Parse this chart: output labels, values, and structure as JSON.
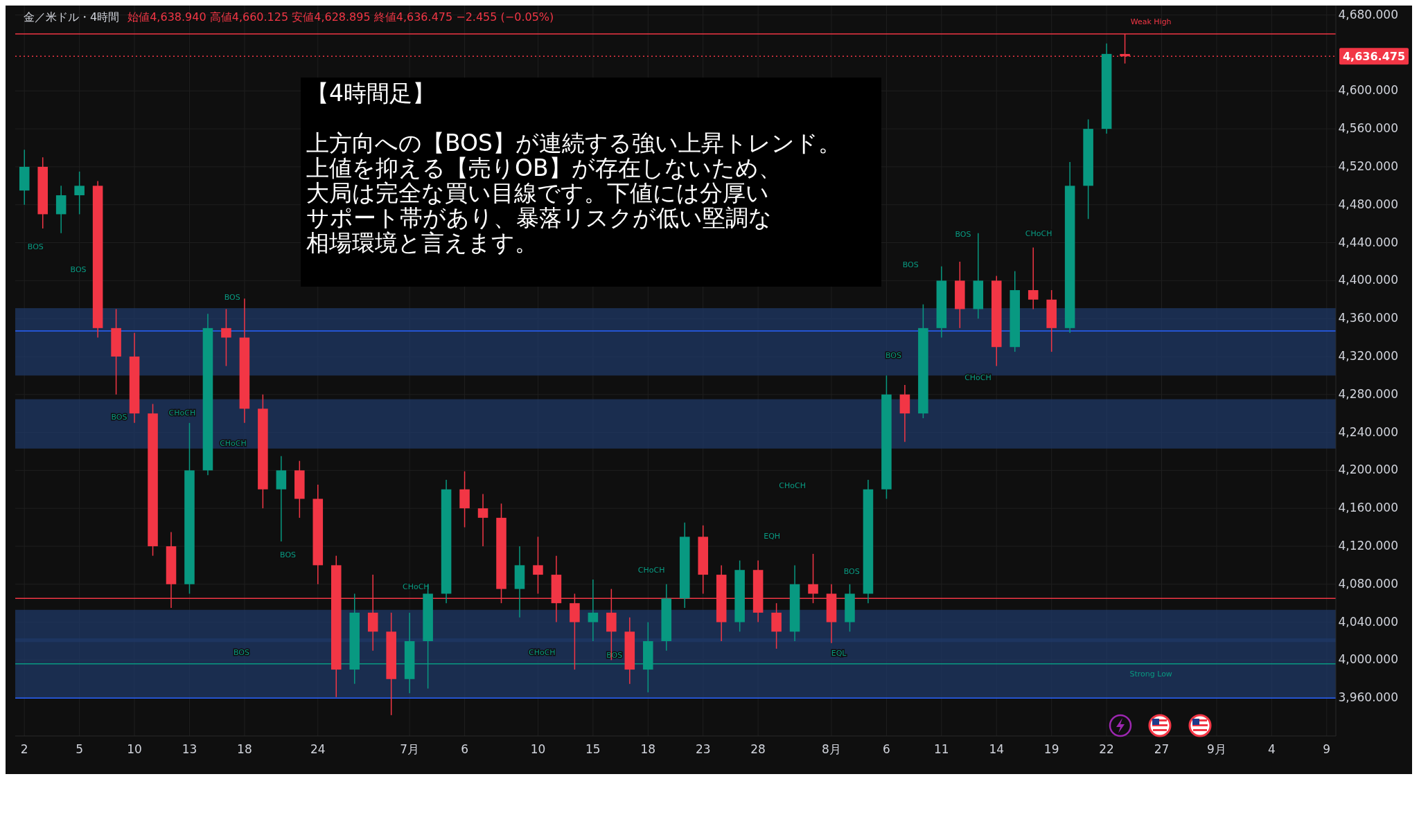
{
  "chart_data": {
    "type": "candlestick",
    "title": "金／米ドル・4時間",
    "subtitle": "始値4,638.940 高値4,660.125 安値4,628.895 終値4,636.475 −2.455 (−0.05%)",
    "categories": [
      "2",
      null,
      null,
      "5",
      null,
      null,
      "10",
      null,
      null,
      "13",
      null,
      null,
      "18",
      null,
      null,
      null,
      "24",
      null,
      null,
      null,
      null,
      "7月",
      null,
      null,
      "6",
      null,
      null,
      null,
      "10",
      null,
      null,
      "15",
      null,
      null,
      "18",
      null,
      null,
      "23",
      null,
      null,
      "28",
      null,
      null,
      null,
      "8月",
      null,
      null,
      "6",
      null,
      null,
      "11",
      null,
      null,
      "14",
      null,
      null,
      "19",
      null,
      null,
      "22",
      null,
      null,
      "27",
      null,
      null,
      "9月",
      null,
      null,
      "4",
      null,
      null,
      "9"
    ],
    "ohlc": [
      [
        4495,
        4538,
        4480,
        4520
      ],
      [
        4520,
        4530,
        4455,
        4470
      ],
      [
        4470,
        4500,
        4450,
        4490
      ],
      [
        4490,
        4515,
        4470,
        4500
      ],
      [
        4500,
        4505,
        4340,
        4350
      ],
      [
        4350,
        4370,
        4280,
        4320
      ],
      [
        4320,
        4345,
        4250,
        4260
      ],
      [
        4260,
        4270,
        4110,
        4120
      ],
      [
        4120,
        4135,
        4055,
        4080
      ],
      [
        4080,
        4250,
        4070,
        4200
      ],
      [
        4200,
        4365,
        4195,
        4350
      ],
      [
        4350,
        4370,
        4310,
        4340
      ],
      [
        4340,
        4381,
        4250,
        4265
      ],
      [
        4265,
        4280,
        4160,
        4180
      ],
      [
        4180,
        4215,
        4125,
        4200
      ],
      [
        4200,
        4210,
        4150,
        4170
      ],
      [
        4170,
        4185,
        4080,
        4100
      ],
      [
        4100,
        4110,
        3961,
        3990
      ],
      [
        3990,
        4070,
        3975,
        4050
      ],
      [
        4050,
        4090,
        4010,
        4030
      ],
      [
        4030,
        4050,
        3942,
        3980
      ],
      [
        3980,
        4050,
        3965,
        4020
      ],
      [
        4020,
        4080,
        3970,
        4070
      ],
      [
        4070,
        4190,
        4060,
        4180
      ],
      [
        4180,
        4199,
        4140,
        4160
      ],
      [
        4160,
        4175,
        4120,
        4150
      ],
      [
        4150,
        4165,
        4060,
        4075
      ],
      [
        4075,
        4120,
        4045,
        4100
      ],
      [
        4100,
        4130,
        4070,
        4090
      ],
      [
        4090,
        4110,
        4040,
        4060
      ],
      [
        4060,
        4070,
        3990,
        4040
      ],
      [
        4040,
        4085,
        4020,
        4050
      ],
      [
        4050,
        4075,
        4000,
        4030
      ],
      [
        4030,
        4045,
        3975,
        3990
      ],
      [
        3990,
        4040,
        3966,
        4020
      ],
      [
        4020,
        4080,
        4010,
        4065
      ],
      [
        4065,
        4145,
        4055,
        4130
      ],
      [
        4130,
        4142,
        4070,
        4090
      ],
      [
        4090,
        4100,
        4020,
        4040
      ],
      [
        4040,
        4105,
        4030,
        4095
      ],
      [
        4095,
        4105,
        4040,
        4050
      ],
      [
        4050,
        4060,
        4012,
        4030
      ],
      [
        4030,
        4100,
        4020,
        4080
      ],
      [
        4080,
        4112,
        4060,
        4070
      ],
      [
        4070,
        4080,
        4018,
        4040
      ],
      [
        4040,
        4080,
        4030,
        4070
      ],
      [
        4070,
        4190,
        4060,
        4180
      ],
      [
        4180,
        4300,
        4170,
        4280
      ],
      [
        4280,
        4290,
        4230,
        4260
      ],
      [
        4260,
        4375,
        4255,
        4350
      ],
      [
        4350,
        4415,
        4340,
        4400
      ],
      [
        4400,
        4420,
        4350,
        4370
      ],
      [
        4370,
        4450,
        4360,
        4400
      ],
      [
        4400,
        4405,
        4310,
        4330
      ],
      [
        4330,
        4410,
        4325,
        4390
      ],
      [
        4390,
        4435,
        4370,
        4380
      ],
      [
        4380,
        4390,
        4325,
        4350
      ],
      [
        4350,
        4525,
        4345,
        4500
      ],
      [
        4500,
        4570,
        4465,
        4560
      ],
      [
        4560,
        4650,
        4555,
        4639
      ],
      [
        4638.94,
        4660.125,
        4628.895,
        4636.475
      ],
      null,
      null,
      null,
      null,
      null,
      null,
      null,
      null,
      null,
      null,
      null
    ],
    "ylim": [
      3920,
      4690
    ],
    "yticks": [
      {
        "value": 3960,
        "label": "3,960.000"
      },
      {
        "value": 4000,
        "label": "4,000.000"
      },
      {
        "value": 4040,
        "label": "4,040.000"
      },
      {
        "value": 4080,
        "label": "4,080.000"
      },
      {
        "value": 4120,
        "label": "4,120.000"
      },
      {
        "value": 4160,
        "label": "4,160.000"
      },
      {
        "value": 4200,
        "label": "4,200.000"
      },
      {
        "value": 4240,
        "label": "4,240.000"
      },
      {
        "value": 4280,
        "label": "4,280.000"
      },
      {
        "value": 4320,
        "label": "4,320.000"
      },
      {
        "value": 4360,
        "label": "4,360.000"
      },
      {
        "value": 4400,
        "label": "4,400.000"
      },
      {
        "value": 4440,
        "label": "4,440.000"
      },
      {
        "value": 4480,
        "label": "4,480.000"
      },
      {
        "value": 4520,
        "label": "4,520.000"
      },
      {
        "value": 4560,
        "label": "4,560.000"
      },
      {
        "value": 4600,
        "label": "4,600.000"
      },
      {
        "value": 4680,
        "label": "4,680.000"
      }
    ],
    "grid": true,
    "ref_lines": [
      {
        "axis": "y",
        "value": 4636.475,
        "label": "4,636.475",
        "color": "#f23645",
        "line_style": "dotted"
      },
      {
        "axis": "y",
        "value": 4660,
        "label": "Weak High",
        "color": "#f23645",
        "line_style": "solid"
      },
      {
        "axis": "y",
        "value": 3996,
        "label": "Strong Low",
        "color": "#089981",
        "line_style": "solid"
      },
      {
        "axis": "y",
        "value": 4065,
        "color": "#f23645",
        "line_style": "solid"
      },
      {
        "axis": "y",
        "value": 4347,
        "color": "#2962ff",
        "line_style": "solid"
      },
      {
        "axis": "y",
        "value": 3960,
        "color": "#2962ff",
        "line_style": "solid"
      }
    ],
    "bands": [
      {
        "axis": "y",
        "from": 4300,
        "to": 4371,
        "color": "#1f3866"
      },
      {
        "axis": "y",
        "from": 4223,
        "to": 4275,
        "color": "#1f3866"
      },
      {
        "axis": "y",
        "from": 4019,
        "to": 4053,
        "color": "#1f3866"
      },
      {
        "axis": "y",
        "from": 3960,
        "to": 4023,
        "color": "#1f3866"
      }
    ],
    "annotations": [
      "【4時間足】",
      "上方向への【BOS】が連続する強い上昇トレンド。",
      "上値を抑える【売りOB】が存在しないため、",
      "大局は完全な買い目線です。下値には分厚い",
      "サポート帯があり、暴落リスクが低い堅調な",
      "相場環境と言えます。",
      "BOS",
      "BOS",
      "BOS",
      "CHoCH",
      "BOS",
      "CHoCH",
      "BOS",
      "BOS",
      "CHoCH",
      "CHoCH",
      "BOS",
      "CHoCH",
      "CHoCH",
      "EQH",
      "BOS",
      "EQL",
      "BOS",
      "BOS",
      "BOS",
      "CHoCH",
      "CHoCH"
    ]
  }
}
